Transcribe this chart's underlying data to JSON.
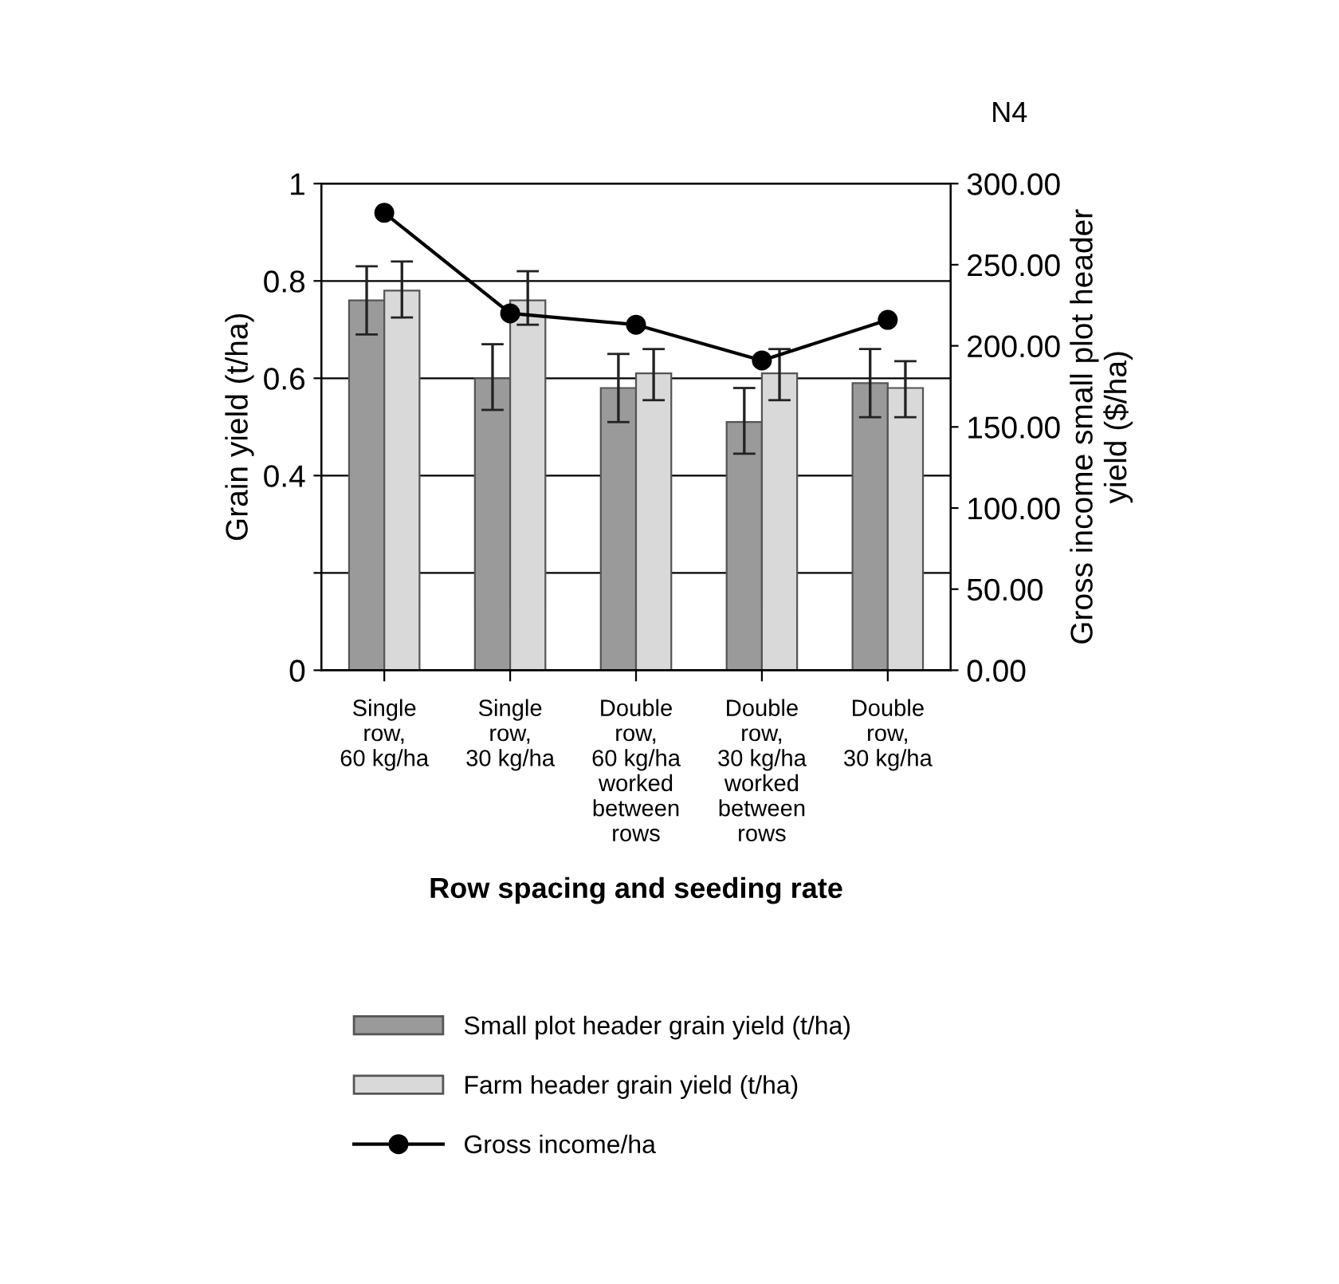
{
  "chart_data": {
    "type": "bar",
    "title": "N4",
    "xlabel": "Row spacing and seeding rate",
    "ylabel": "Grain yield (t/ha)",
    "y2label": "Gross income small plot header\nyield ($/ha)",
    "categories": [
      "Single\nrow,\n60 kg/ha",
      "Single\nrow,\n30 kg/ha",
      "Double\nrow,\n60 kg/ha\nworked\nbetween\nrows",
      "Double\nrow,\n30 kg/ha\nworked\nbetween\nrows",
      "Double\nrow,\n30 kg/ha"
    ],
    "series": [
      {
        "name": "Small plot header grain yield (t/ha)",
        "color": "#9a9a9a",
        "values": [
          0.76,
          0.6,
          0.58,
          0.51,
          0.59
        ],
        "errors": [
          [
            0.69,
            0.83
          ],
          [
            0.535,
            0.67
          ],
          [
            0.51,
            0.65
          ],
          [
            0.445,
            0.58
          ],
          [
            0.52,
            0.66
          ]
        ]
      },
      {
        "name": "Farm header grain yield (t/ha)",
        "color": "#d9d9d9",
        "values": [
          0.78,
          0.76,
          0.61,
          0.61,
          0.58
        ],
        "errors": [
          [
            0.725,
            0.84
          ],
          [
            0.71,
            0.82
          ],
          [
            0.555,
            0.66
          ],
          [
            0.555,
            0.66
          ],
          [
            0.52,
            0.635
          ]
        ]
      },
      {
        "name": "Gross income/ha",
        "type": "line",
        "axis": "y2",
        "color": "#000000",
        "marker": "circle",
        "values": [
          282,
          220,
          213,
          191,
          216
        ]
      }
    ],
    "ylim": [
      0,
      1
    ],
    "yticks": [
      0,
      {
        "value": 0.2,
        "label": null
      },
      0.4,
      0.6,
      0.8,
      1
    ],
    "y2lim": [
      0,
      300
    ],
    "y2ticks": [
      {
        "value": 0,
        "label": "0.00"
      },
      {
        "value": 50,
        "label": "50.00"
      },
      {
        "value": 100,
        "label": "100.00"
      },
      {
        "value": 150,
        "label": "150.00"
      },
      {
        "value": 200,
        "label": "200.00"
      },
      {
        "value": 250,
        "label": "250.00"
      },
      {
        "value": 300,
        "label": "300.00"
      }
    ],
    "grid": "y",
    "legend": "bottom",
    "line_style": "solid"
  }
}
